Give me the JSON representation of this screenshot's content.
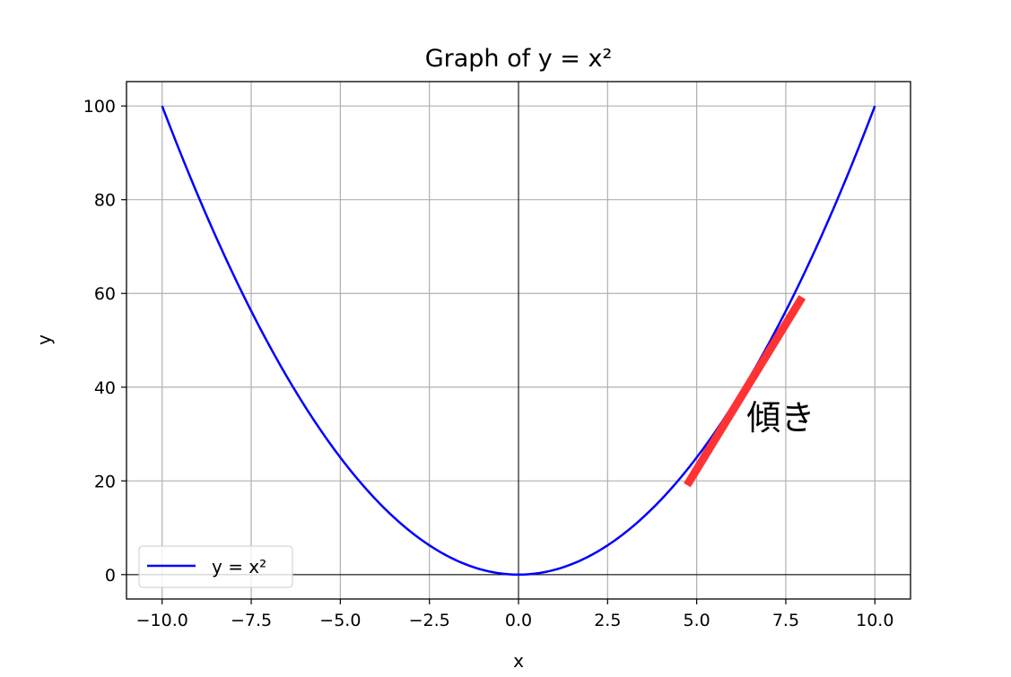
{
  "chart_data": {
    "type": "line",
    "title": "Graph of y = x²",
    "xlabel": "x",
    "ylabel": "y",
    "xlim": [
      -11,
      11
    ],
    "ylim": [
      -5.2,
      105.2
    ],
    "xticks": [
      -10,
      -7.5,
      -5,
      -2.5,
      0,
      2.5,
      5,
      7.5,
      10
    ],
    "xtick_labels": [
      "−10.0",
      "−7.5",
      "−5.0",
      "−2.5",
      "0.0",
      "2.5",
      "5.0",
      "7.5",
      "10.0"
    ],
    "yticks": [
      0,
      20,
      40,
      60,
      80,
      100
    ],
    "ytick_labels": [
      "0",
      "20",
      "40",
      "60",
      "80",
      "100"
    ],
    "grid": true,
    "reference_lines": {
      "x": 0,
      "y": 0
    },
    "series": [
      {
        "name": "y = x²",
        "function": "x^2",
        "x_range": [
          -10,
          10
        ],
        "color": "#0000ff"
      }
    ],
    "annotations": [
      {
        "type": "segment",
        "from": [
          4.73,
          19.1
        ],
        "to": [
          7.96,
          59.2
        ],
        "color": "#ff3333"
      },
      {
        "type": "text",
        "text": "傾き",
        "at": [
          6.4,
          31
        ]
      }
    ],
    "legend": {
      "position": "bottom-left",
      "entries": [
        "y = x²"
      ]
    }
  }
}
